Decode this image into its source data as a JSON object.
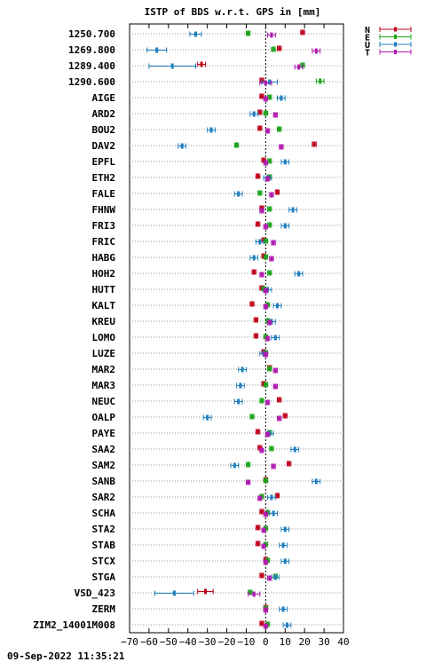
{
  "chart_data": {
    "type": "scatter",
    "title": "ISTP of BDS w.r.t. GPS in [mm]",
    "timestamp": "09-Sep-2022 11:35:21",
    "xlim": [
      -70,
      40
    ],
    "xticks": [
      -70,
      -60,
      -50,
      -40,
      -30,
      -20,
      -10,
      0,
      10,
      20,
      30,
      40
    ],
    "grid": "horizontal-dotted",
    "zero_line": "dashed-vertical",
    "legend_position": "top-right",
    "series": [
      {
        "name": "N",
        "color": "#c0001a"
      },
      {
        "name": "E",
        "color": "#1aa51a"
      },
      {
        "name": "U",
        "color": "#1f7fbf"
      },
      {
        "name": "T",
        "color": "#b01ab0"
      }
    ],
    "stations": [
      "1250.700",
      "1269.800",
      "1289.400",
      "1290.600",
      "AIGE",
      "ARD2",
      "BOU2",
      "DAV2",
      "EPFL",
      "ETH2",
      "FALE",
      "FHNW",
      "FRI3",
      "FRIC",
      "HABG",
      "HOH2",
      "HUTT",
      "KALT",
      "KREU",
      "LOMO",
      "LUZE",
      "MAR2",
      "MAR3",
      "NEUC",
      "OALP",
      "PAYE",
      "SAA2",
      "SAM2",
      "SANB",
      "SAR2",
      "SCHA",
      "STA2",
      "STAB",
      "STCX",
      "STGA",
      "VSD_423",
      "ZERM",
      "ZIM2_14001M008"
    ],
    "values": {
      "N": [
        19,
        7,
        -33,
        -2,
        -2,
        -3,
        -3,
        25,
        -1,
        -4,
        6,
        -2,
        -4,
        -1,
        -1,
        -6,
        -2,
        -7,
        -5,
        -5,
        -1,
        2,
        -1,
        7,
        10,
        -4,
        -3,
        12,
        0,
        6,
        -2,
        -4,
        -4,
        0,
        -2,
        -31,
        0,
        -2
      ],
      "E": [
        -9,
        4,
        19,
        28,
        2,
        0,
        7,
        -15,
        2,
        2,
        -3,
        2,
        2,
        0,
        0,
        2,
        -1,
        1,
        1,
        0,
        0,
        2,
        0,
        -2,
        -7,
        2,
        3,
        -9,
        0,
        -2,
        1,
        0,
        0,
        1,
        5,
        -8,
        0,
        1
      ],
      "U": [
        -36,
        -56,
        -48,
        2,
        8,
        -6,
        -28,
        -43,
        10,
        1,
        -14,
        14,
        10,
        -3,
        -6,
        17,
        1,
        6,
        3,
        5,
        -1,
        -12,
        -13,
        -14,
        -30,
        2,
        15,
        -16,
        26,
        3,
        4,
        10,
        9,
        10,
        5,
        -47,
        9,
        11
      ],
      "T": [
        3,
        26,
        17,
        0,
        0,
        5,
        1,
        8,
        0,
        1,
        3,
        -2,
        0,
        4,
        3,
        -2,
        0,
        0,
        2,
        1,
        0,
        5,
        5,
        1,
        7,
        1,
        -2,
        4,
        -9,
        -3,
        0,
        -1,
        -1,
        0,
        2,
        -6,
        0,
        0
      ]
    },
    "errors": {
      "N": [
        1,
        1,
        2,
        1,
        1,
        1,
        1,
        1,
        1,
        1,
        1,
        1,
        1,
        1,
        1,
        1,
        1,
        1,
        1,
        1,
        1,
        1,
        1,
        1,
        1,
        1,
        1,
        1,
        1,
        1,
        1,
        1,
        1,
        1,
        1,
        4,
        1,
        1
      ],
      "E": [
        1,
        1,
        1,
        2,
        1,
        1,
        1,
        1,
        1,
        1,
        1,
        1,
        1,
        1,
        1,
        1,
        1,
        1,
        1,
        1,
        1,
        1,
        1,
        1,
        1,
        1,
        1,
        1,
        1,
        1,
        1,
        1,
        1,
        1,
        1,
        1,
        1,
        1
      ],
      "U": [
        3,
        5,
        12,
        4,
        2,
        2,
        2,
        2,
        2,
        2,
        2,
        2,
        2,
        2,
        2,
        2,
        2,
        2,
        2,
        2,
        2,
        2,
        2,
        2,
        2,
        2,
        2,
        2,
        2,
        2,
        2,
        2,
        2,
        2,
        2,
        10,
        2,
        2
      ],
      "T": [
        2,
        2,
        2,
        3,
        1,
        1,
        1,
        1,
        1,
        1,
        1,
        1,
        1,
        1,
        1,
        1,
        1,
        1,
        1,
        1,
        1,
        1,
        1,
        1,
        1,
        1,
        1,
        1,
        1,
        1,
        1,
        1,
        1,
        1,
        1,
        3,
        1,
        1
      ]
    }
  }
}
